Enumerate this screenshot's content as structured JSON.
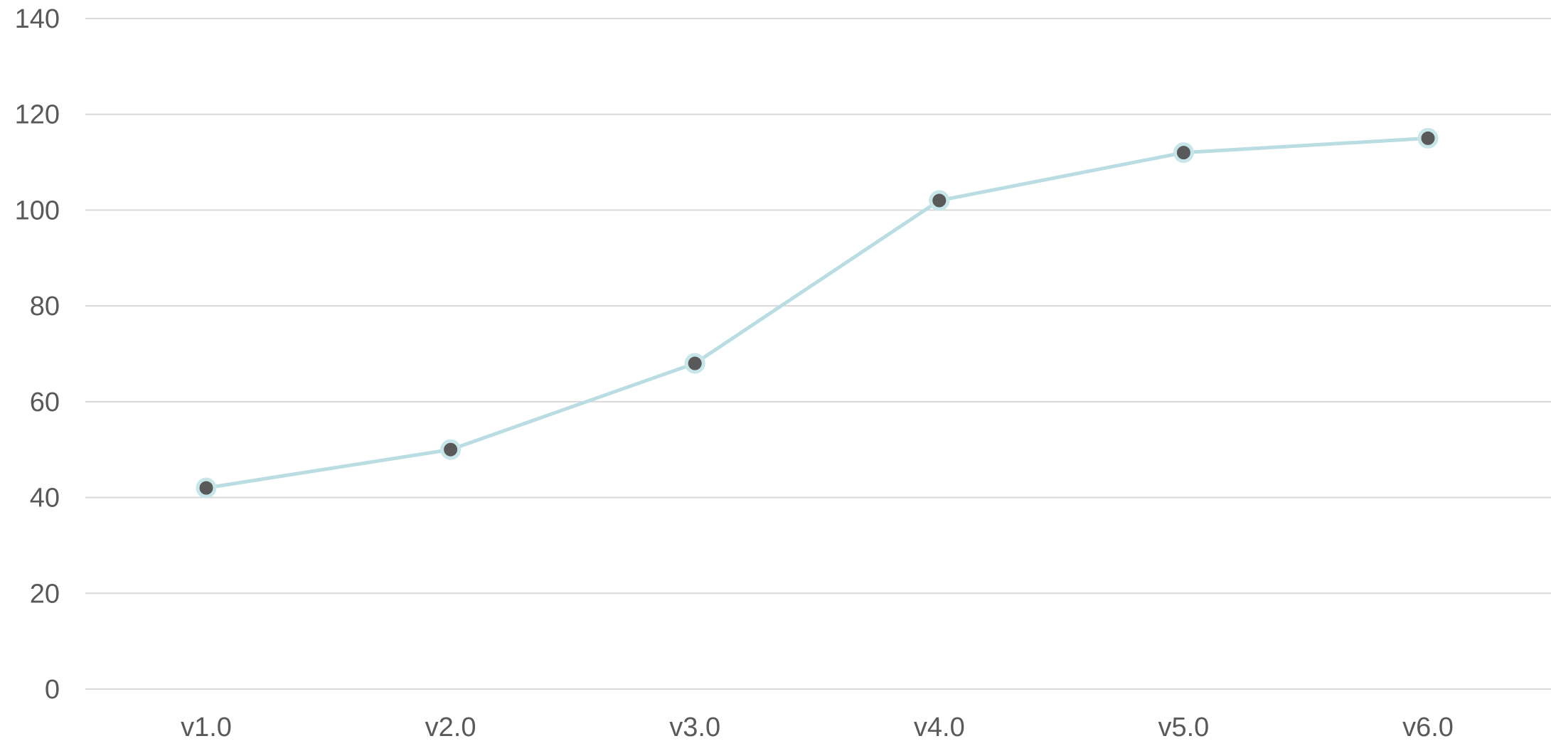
{
  "chart_data": {
    "type": "line",
    "title": "",
    "xlabel": "",
    "ylabel": "",
    "categories": [
      "v1.0",
      "v2.0",
      "v3.0",
      "v4.0",
      "v5.0",
      "v6.0"
    ],
    "series": [
      {
        "values": [
          42,
          50,
          68,
          102,
          112,
          115
        ]
      }
    ],
    "ylim": [
      0,
      140
    ],
    "y_ticks": [
      0,
      20,
      40,
      60,
      80,
      100,
      120,
      140
    ],
    "y_tick_labels": [
      "0",
      "20",
      "40",
      "60",
      "80",
      "100",
      "120",
      "140"
    ],
    "grid": true,
    "legend": "none",
    "colors": {
      "line": "#b9dde2",
      "marker_fill": "#595959",
      "marker_edge": "#c7e6ea",
      "grid": "#d9d9d9",
      "text": "#595959"
    }
  }
}
